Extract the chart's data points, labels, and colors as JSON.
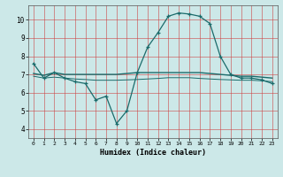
{
  "title": "",
  "xlabel": "Humidex (Indice chaleur)",
  "ylabel": "",
  "bg_color": "#cce8e8",
  "grid_color_major": "#e08080",
  "grid_color_minor": "#e8b0b0",
  "line_color": "#1a6b6b",
  "xlim": [
    -0.5,
    23.5
  ],
  "ylim": [
    3.5,
    10.8
  ],
  "xticks": [
    0,
    1,
    2,
    3,
    4,
    5,
    6,
    7,
    8,
    9,
    10,
    11,
    12,
    13,
    14,
    15,
    16,
    17,
    18,
    19,
    20,
    21,
    22,
    23
  ],
  "yticks": [
    4,
    5,
    6,
    7,
    8,
    9,
    10
  ],
  "series1_x": [
    0,
    1,
    2,
    3,
    4,
    5,
    6,
    7,
    8,
    9,
    10,
    11,
    12,
    13,
    14,
    15,
    16,
    17,
    18,
    19,
    20,
    21,
    22,
    23
  ],
  "series1_y": [
    7.6,
    6.8,
    7.1,
    6.8,
    6.6,
    6.5,
    5.6,
    5.8,
    4.3,
    5.0,
    7.1,
    8.5,
    9.3,
    10.2,
    10.38,
    10.32,
    10.2,
    9.8,
    8.0,
    7.0,
    6.8,
    6.8,
    6.7,
    6.5
  ],
  "series2_x": [
    0,
    1,
    2,
    3,
    4,
    5,
    6,
    7,
    8,
    9,
    10,
    11,
    12,
    13,
    14,
    15,
    16,
    17,
    18,
    19,
    20,
    21,
    22,
    23
  ],
  "series2_y": [
    7.05,
    6.95,
    7.1,
    7.0,
    7.0,
    7.0,
    7.0,
    7.0,
    7.0,
    7.05,
    7.1,
    7.1,
    7.1,
    7.1,
    7.1,
    7.1,
    7.1,
    7.05,
    7.0,
    6.95,
    6.9,
    6.9,
    6.85,
    6.8
  ],
  "series3_x": [
    0,
    1,
    2,
    3,
    4,
    5,
    6,
    7,
    8,
    9,
    10,
    11,
    12,
    13,
    14,
    15,
    16,
    17,
    18,
    19,
    20,
    21,
    22,
    23
  ],
  "series3_y": [
    6.9,
    6.8,
    6.85,
    6.8,
    6.75,
    6.72,
    6.68,
    6.68,
    6.68,
    6.7,
    6.72,
    6.75,
    6.78,
    6.82,
    6.82,
    6.82,
    6.78,
    6.75,
    6.72,
    6.7,
    6.68,
    6.68,
    6.65,
    6.6
  ]
}
